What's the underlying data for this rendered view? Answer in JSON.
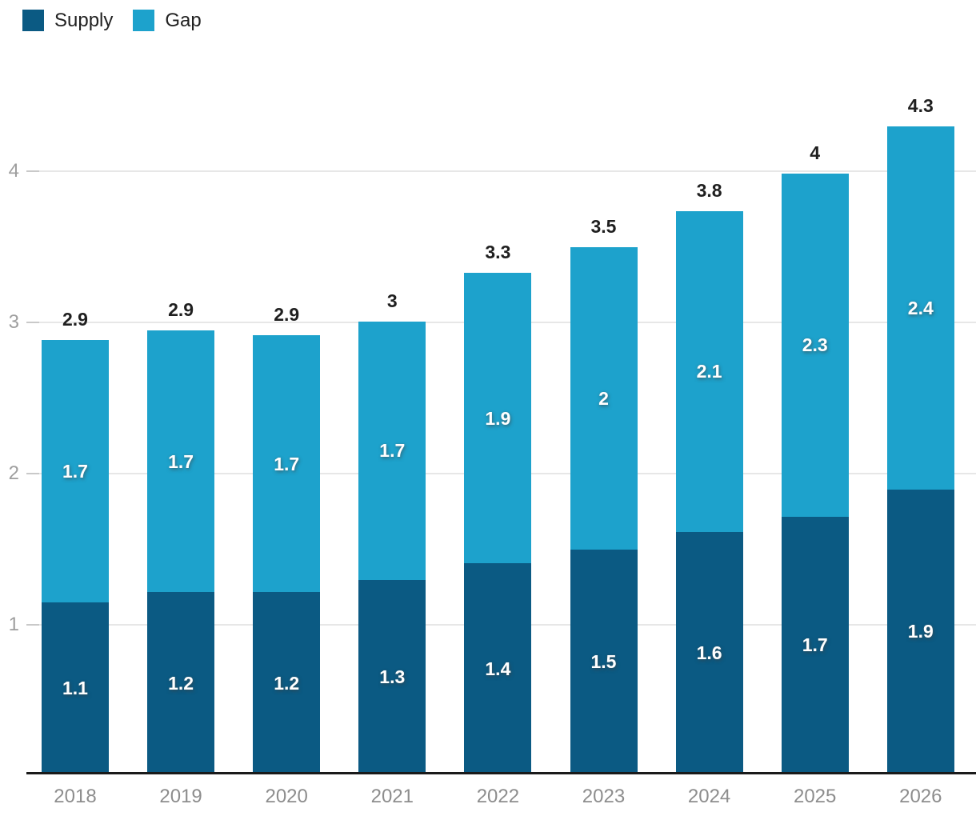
{
  "chart_data": {
    "type": "bar-stacked",
    "categories": [
      "2018",
      "2019",
      "2020",
      "2021",
      "2022",
      "2023",
      "2024",
      "2025",
      "2026"
    ],
    "series": [
      {
        "name": "Supply",
        "color": "#0b5a83",
        "labels": [
          "1.1",
          "1.2",
          "1.2",
          "1.3",
          "1.4",
          "1.5",
          "1.6",
          "1.7",
          "1.9"
        ],
        "values": [
          1.1,
          1.2,
          1.2,
          1.3,
          1.4,
          1.5,
          1.6,
          1.7,
          1.9
        ],
        "render_values": [
          1.13,
          1.2,
          1.2,
          1.28,
          1.39,
          1.48,
          1.6,
          1.7,
          1.88
        ]
      },
      {
        "name": "Gap",
        "color": "#1da2cc",
        "labels": [
          "1.7",
          "1.7",
          "1.7",
          "1.7",
          "1.9",
          "2",
          "2.1",
          "2.3",
          "2.4"
        ],
        "values": [
          1.7,
          1.7,
          1.7,
          1.7,
          1.9,
          2.0,
          2.1,
          2.3,
          2.4
        ],
        "render_values": [
          1.74,
          1.73,
          1.7,
          1.71,
          1.92,
          2.0,
          2.12,
          2.27,
          2.4
        ]
      }
    ],
    "total_labels": [
      "2.9",
      "2.9",
      "2.9",
      "3",
      "3.3",
      "3.5",
      "3.8",
      "4",
      "4.3"
    ],
    "totals": [
      2.9,
      2.9,
      2.9,
      3,
      3.3,
      3.5,
      3.8,
      4,
      4.3
    ],
    "y_ticks": [
      1,
      2,
      3,
      4
    ],
    "ylim": [
      0,
      5.1
    ],
    "grid": true,
    "legend_position": "top-left",
    "colors": {
      "axis_line": "#1a1a1a",
      "gridline": "#e7e7e7",
      "tick": "#c9c9c9",
      "x_label": "#8d8d8d",
      "y_label": "#9e9e9e",
      "total_label": "#1f1f1f",
      "bar_value_label": "#ffffff",
      "background": "#ffffff"
    }
  }
}
